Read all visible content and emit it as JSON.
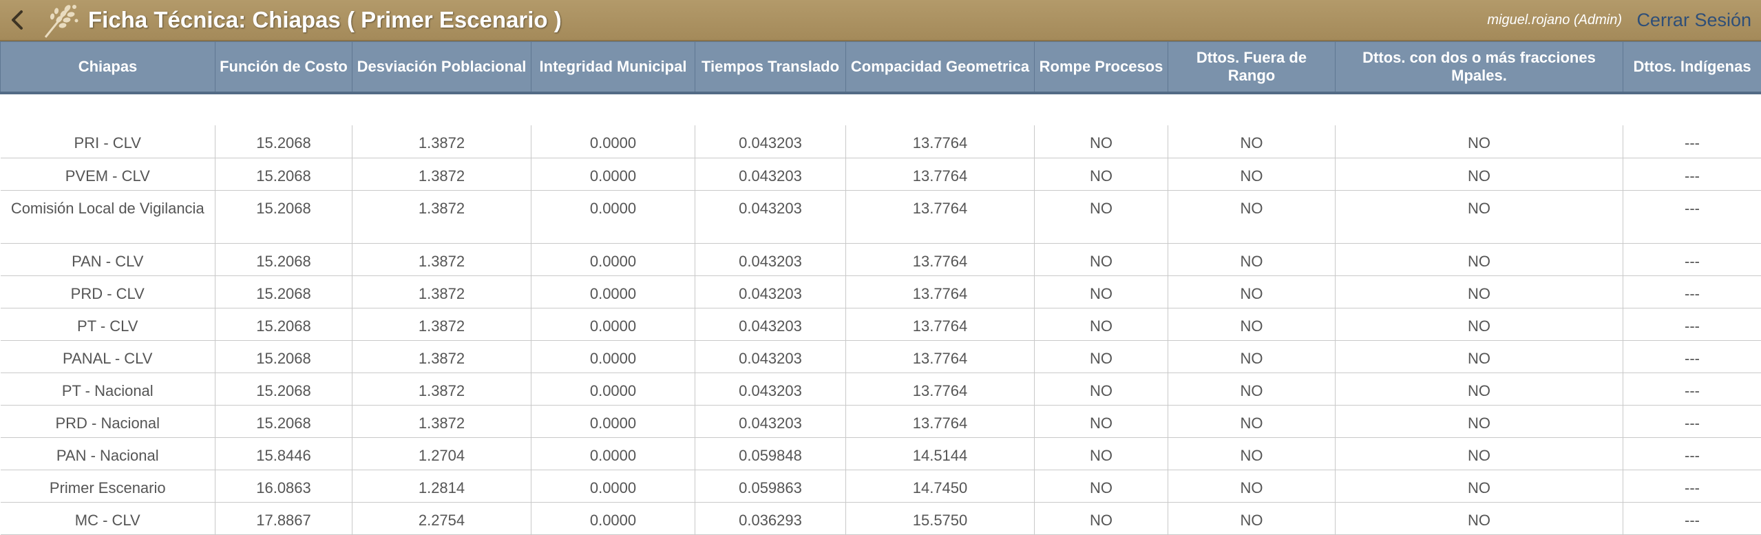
{
  "header": {
    "title": "Ficha Técnica: Chiapas ( Primer Escenario )",
    "user": "miguel.rojano (Admin)",
    "logout_label": "Cerrar Sesión"
  },
  "colors": {
    "topbar": "#b39a6a",
    "table_header": "#7b92ab",
    "logout_link": "#2f4f78"
  },
  "icons": {
    "back": "chevron-left-icon",
    "logo": "wheat-logo-icon"
  },
  "table": {
    "columns": [
      "Chiapas",
      "Función de Costo",
      "Desviación Poblacional",
      "Integridad Municipal",
      "Tiempos Translado",
      "Compacidad Geometrica",
      "Rompe Procesos",
      "Dttos. Fuera de Rango",
      "Dttos. con dos o más fracciones Mpales.",
      "Dttos. Indígenas"
    ],
    "rows": [
      [
        "PRI - CLV",
        "15.2068",
        "1.3872",
        "0.0000",
        "0.043203",
        "13.7764",
        "NO",
        "NO",
        "NO",
        "---"
      ],
      [
        "PVEM - CLV",
        "15.2068",
        "1.3872",
        "0.0000",
        "0.043203",
        "13.7764",
        "NO",
        "NO",
        "NO",
        "---"
      ],
      [
        "Comisión Local de Vigilancia",
        "15.2068",
        "1.3872",
        "0.0000",
        "0.043203",
        "13.7764",
        "NO",
        "NO",
        "NO",
        "---"
      ],
      [
        "PAN - CLV",
        "15.2068",
        "1.3872",
        "0.0000",
        "0.043203",
        "13.7764",
        "NO",
        "NO",
        "NO",
        "---"
      ],
      [
        "PRD - CLV",
        "15.2068",
        "1.3872",
        "0.0000",
        "0.043203",
        "13.7764",
        "NO",
        "NO",
        "NO",
        "---"
      ],
      [
        "PT - CLV",
        "15.2068",
        "1.3872",
        "0.0000",
        "0.043203",
        "13.7764",
        "NO",
        "NO",
        "NO",
        "---"
      ],
      [
        "PANAL - CLV",
        "15.2068",
        "1.3872",
        "0.0000",
        "0.043203",
        "13.7764",
        "NO",
        "NO",
        "NO",
        "---"
      ],
      [
        "PT - Nacional",
        "15.2068",
        "1.3872",
        "0.0000",
        "0.043203",
        "13.7764",
        "NO",
        "NO",
        "NO",
        "---"
      ],
      [
        "PRD - Nacional",
        "15.2068",
        "1.3872",
        "0.0000",
        "0.043203",
        "13.7764",
        "NO",
        "NO",
        "NO",
        "---"
      ],
      [
        "PAN - Nacional",
        "15.8446",
        "1.2704",
        "0.0000",
        "0.059848",
        "14.5144",
        "NO",
        "NO",
        "NO",
        "---"
      ],
      [
        "Primer Escenario",
        "16.0863",
        "1.2814",
        "0.0000",
        "0.059863",
        "14.7450",
        "NO",
        "NO",
        "NO",
        "---"
      ],
      [
        "MC - CLV",
        "17.8867",
        "2.2754",
        "0.0000",
        "0.036293",
        "15.5750",
        "NO",
        "NO",
        "NO",
        "---"
      ]
    ]
  }
}
